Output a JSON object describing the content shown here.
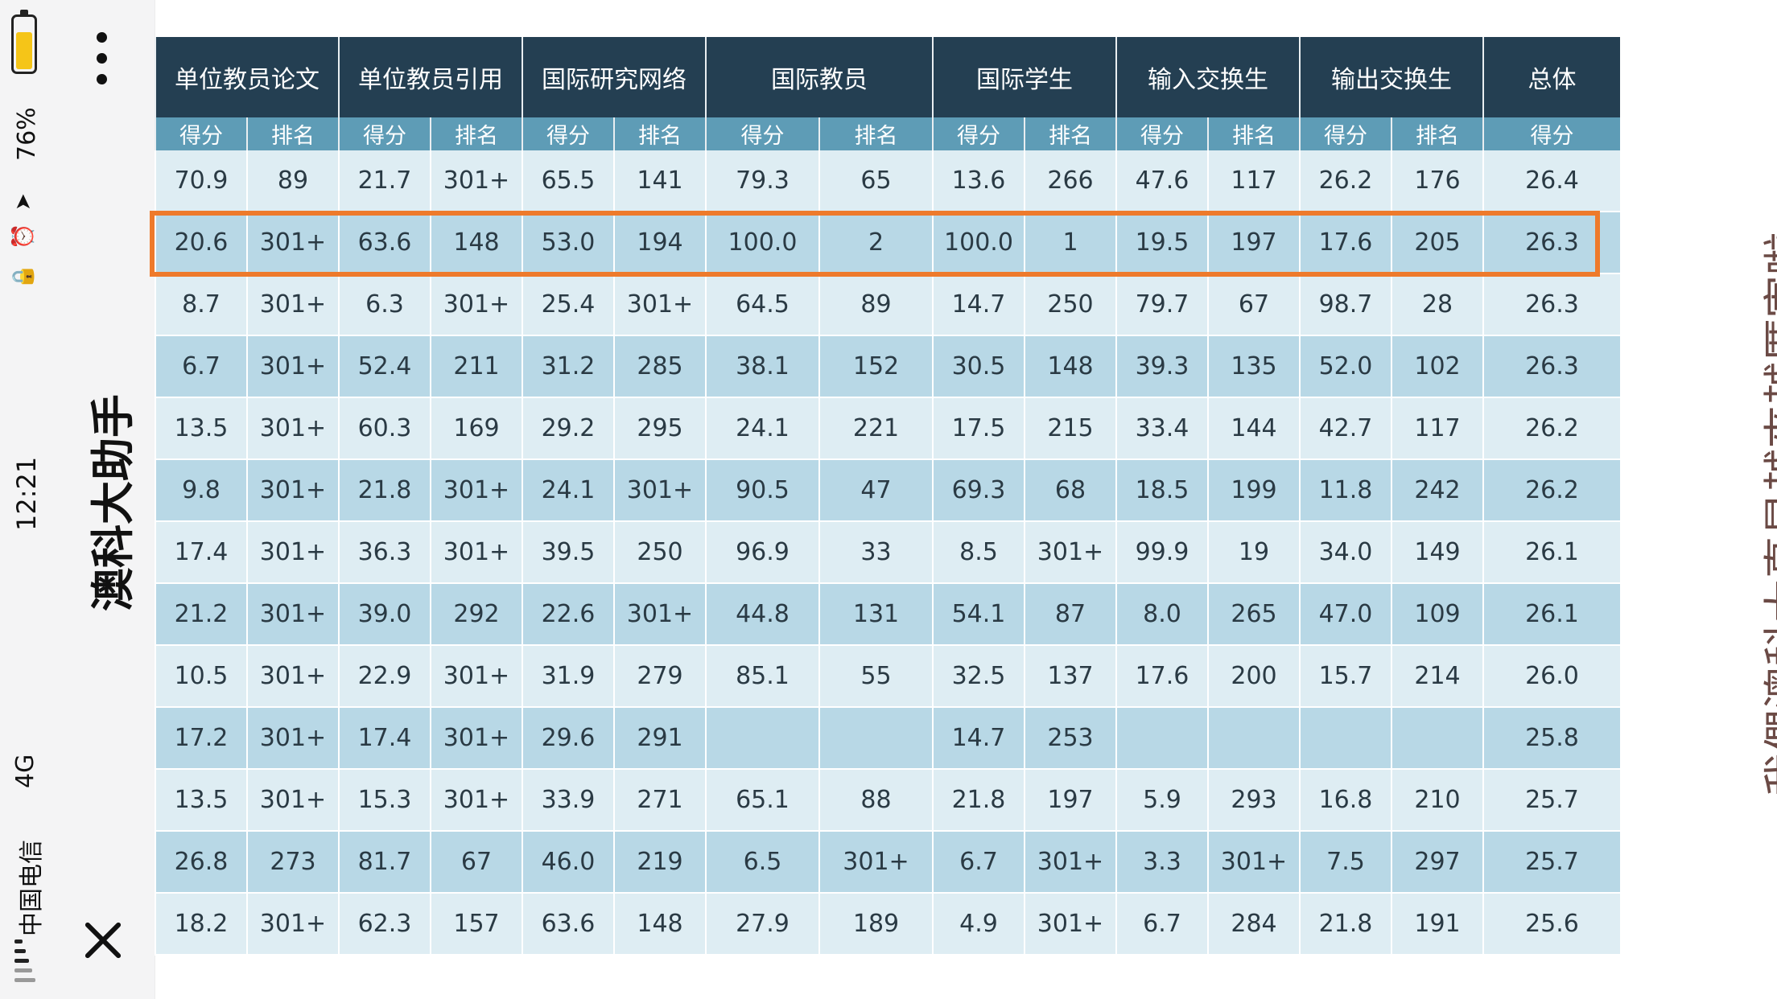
{
  "status": {
    "carrier": "中国电信",
    "network": "4G",
    "time": "12:21",
    "battery": "76%",
    "battery_level": 0.76
  },
  "app": {
    "title": "澳科大助手",
    "menu_icon": "more-vertical-icon",
    "close_icon": "close-icon"
  },
  "table": {
    "groups": [
      "单位教员论文",
      "单位教员引用",
      "国际研究网络",
      "国际教员",
      "国际学生",
      "输入交换生",
      "输出交换生",
      "总体"
    ],
    "sub_score": "得分",
    "sub_rank": "排名",
    "rows": [
      [
        "70.9",
        "89",
        "21.7",
        "301+",
        "65.5",
        "141",
        "79.3",
        "65",
        "13.6",
        "266",
        "47.6",
        "117",
        "26.2",
        "176",
        "26.4"
      ],
      [
        "20.6",
        "301+",
        "63.6",
        "148",
        "53.0",
        "194",
        "100.0",
        "2",
        "100.0",
        "1",
        "19.5",
        "197",
        "17.6",
        "205",
        "26.3"
      ],
      [
        "8.7",
        "301+",
        "6.3",
        "301+",
        "25.4",
        "301+",
        "64.5",
        "89",
        "14.7",
        "250",
        "79.7",
        "67",
        "98.7",
        "28",
        "26.3"
      ],
      [
        "6.7",
        "301+",
        "52.4",
        "211",
        "31.2",
        "285",
        "38.1",
        "152",
        "30.5",
        "148",
        "39.3",
        "135",
        "52.0",
        "102",
        "26.3"
      ],
      [
        "13.5",
        "301+",
        "60.3",
        "169",
        "29.2",
        "295",
        "24.1",
        "221",
        "17.5",
        "215",
        "33.4",
        "144",
        "42.7",
        "117",
        "26.2"
      ],
      [
        "9.8",
        "301+",
        "21.8",
        "301+",
        "24.1",
        "301+",
        "90.5",
        "47",
        "69.3",
        "68",
        "18.5",
        "199",
        "11.8",
        "242",
        "26.2"
      ],
      [
        "17.4",
        "301+",
        "36.3",
        "301+",
        "39.5",
        "250",
        "96.9",
        "33",
        "8.5",
        "301+",
        "99.9",
        "19",
        "34.0",
        "149",
        "26.1"
      ],
      [
        "21.2",
        "301+",
        "39.0",
        "292",
        "22.6",
        "301+",
        "44.8",
        "131",
        "54.1",
        "87",
        "8.0",
        "265",
        "47.0",
        "109",
        "26.1"
      ],
      [
        "10.5",
        "301+",
        "22.9",
        "301+",
        "31.9",
        "279",
        "85.1",
        "55",
        "32.5",
        "137",
        "17.6",
        "200",
        "15.7",
        "214",
        "26.0"
      ],
      [
        "17.2",
        "301+",
        "17.4",
        "301+",
        "29.6",
        "291",
        "",
        "",
        "14.7",
        "253",
        "",
        "",
        "",
        "",
        "25.8"
      ],
      [
        "13.5",
        "301+",
        "15.3",
        "301+",
        "33.9",
        "271",
        "65.1",
        "88",
        "21.8",
        "197",
        "5.9",
        "293",
        "16.8",
        "210",
        "25.7"
      ],
      [
        "26.8",
        "273",
        "81.7",
        "67",
        "46.0",
        "219",
        "6.5",
        "301+",
        "6.7",
        "301+",
        "3.3",
        "301+",
        "7.5",
        "297",
        "25.7"
      ],
      [
        "18.2",
        "301+",
        "62.3",
        "157",
        "63.6",
        "148",
        "27.9",
        "189",
        "4.9",
        "301+",
        "6.7",
        "284",
        "21.8",
        "191",
        "25.6"
      ]
    ],
    "highlight_color": "#ee7a2b",
    "header_color": "#243f52",
    "subheader_color": "#5e9cb6"
  },
  "caption": "我們澳科大真是越來越厲害啦~"
}
